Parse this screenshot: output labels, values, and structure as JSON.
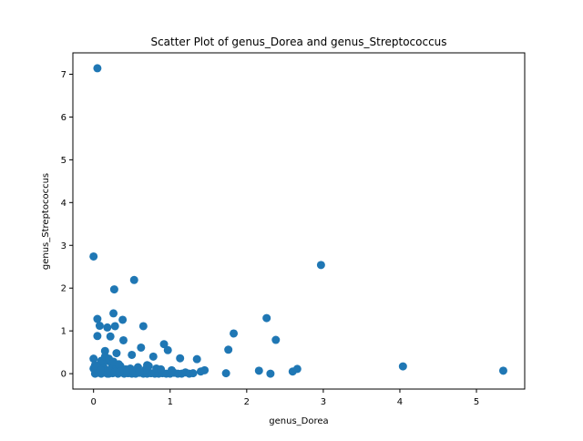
{
  "chart_data": {
    "type": "scatter",
    "title": "Scatter Plot of genus_Dorea and genus_Streptococcus",
    "xlabel": "genus_Dorea",
    "ylabel": "genus_Streptococcus",
    "xlim": [
      -0.27,
      5.63
    ],
    "ylim": [
      -0.36,
      7.5
    ],
    "xticks": [
      0,
      1,
      2,
      3,
      4,
      5
    ],
    "yticks": [
      0,
      1,
      2,
      3,
      4,
      5,
      6,
      7
    ],
    "grid": false,
    "marker_color": "#1f77b4",
    "x": [
      0.05,
      0.0,
      0.53,
      0.27,
      0.05,
      0.08,
      0.26,
      0.65,
      0.18,
      0.05,
      0.22,
      0.28,
      0.38,
      0.0,
      0.97,
      0.92,
      0.39,
      0.15,
      0.62,
      0.5,
      0.3,
      0.7,
      0.78,
      1.35,
      1.13,
      0.02,
      0.1,
      0.18,
      0.05,
      0.12,
      0.2,
      0.25,
      0.32,
      0.4,
      0.45,
      0.5,
      0.55,
      0.6,
      0.65,
      0.7,
      0.75,
      0.8,
      0.85,
      0.9,
      0.95,
      1.0,
      1.05,
      1.1,
      1.15,
      1.2,
      1.25,
      1.3,
      1.4,
      1.45,
      0.03,
      0.08,
      0.13,
      0.22,
      0.28,
      0.35,
      0.42,
      0.48,
      0.58,
      0.68,
      0.72,
      0.82,
      0.88,
      1.02,
      0.12,
      0.18,
      0.24,
      0.3,
      0.36,
      0.44,
      0.52,
      0.6,
      0.02,
      0.06,
      0.1,
      0.15,
      0.2,
      0.26,
      0.33,
      0.16,
      0.21,
      0.28,
      0.34,
      0.0,
      0.04,
      0.09,
      1.76,
      1.83,
      2.26,
      2.38,
      2.97,
      1.73,
      2.16,
      2.31,
      2.6,
      2.66,
      4.04,
      5.35
    ],
    "y": [
      7.14,
      2.74,
      2.19,
      1.97,
      1.28,
      1.12,
      1.41,
      1.11,
      1.08,
      0.88,
      0.87,
      1.11,
      1.26,
      0.35,
      0.55,
      0.69,
      0.78,
      0.53,
      0.61,
      0.44,
      0.48,
      0.2,
      0.4,
      0.34,
      0.36,
      0.0,
      0.0,
      0.0,
      0.02,
      0.02,
      0.0,
      0.01,
      0.0,
      0.0,
      0.01,
      0.0,
      0.0,
      0.02,
      0.0,
      0.0,
      0.01,
      0.0,
      0.0,
      0.01,
      0.0,
      0.0,
      0.02,
      0.0,
      0.0,
      0.03,
      0.0,
      0.01,
      0.05,
      0.08,
      0.1,
      0.12,
      0.15,
      0.1,
      0.2,
      0.18,
      0.1,
      0.12,
      0.15,
      0.1,
      0.18,
      0.12,
      0.1,
      0.08,
      0.25,
      0.3,
      0.22,
      0.16,
      0.08,
      0.05,
      0.06,
      0.05,
      0.2,
      0.15,
      0.3,
      0.4,
      0.35,
      0.28,
      0.22,
      0.05,
      0.06,
      0.04,
      0.05,
      0.12,
      0.16,
      0.08,
      0.56,
      0.94,
      1.3,
      0.79,
      2.54,
      0.01,
      0.07,
      0.0,
      0.05,
      0.11,
      0.17,
      0.07
    ]
  }
}
